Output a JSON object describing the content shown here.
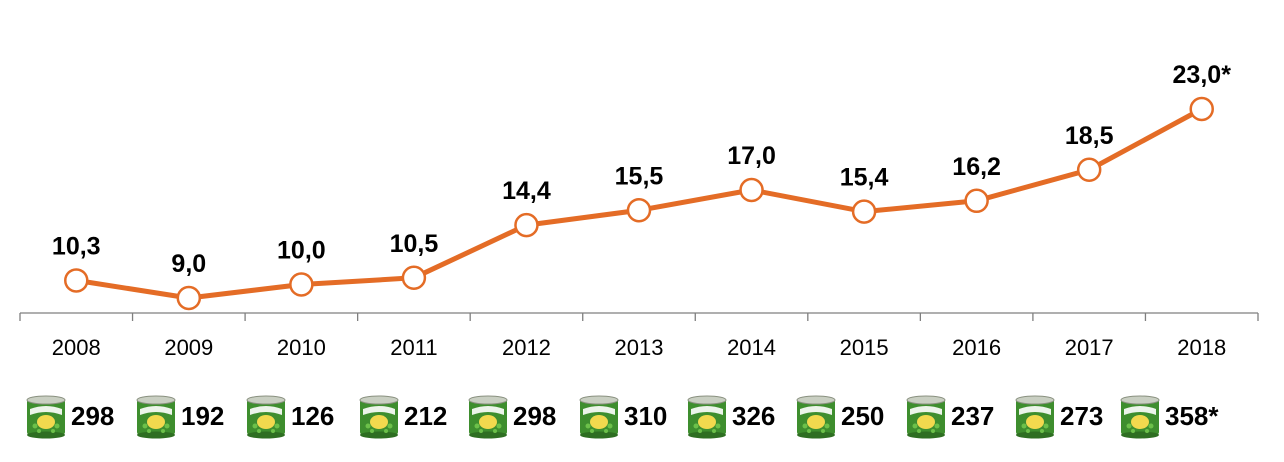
{
  "chart_data": {
    "type": "line",
    "categories": [
      "2008",
      "2009",
      "2010",
      "2011",
      "2012",
      "2013",
      "2014",
      "2015",
      "2016",
      "2017",
      "2018"
    ],
    "series": [
      {
        "values": [
          10.3,
          9.0,
          10.0,
          10.5,
          14.4,
          15.5,
          17.0,
          15.4,
          16.2,
          18.5,
          23.0
        ],
        "labels": [
          "10,3",
          "9,0",
          "10,0",
          "10,5",
          "14,4",
          "15,5",
          "17,0",
          "15,4",
          "16,2",
          "18,5",
          "23,0*"
        ],
        "color": "#E46C26"
      }
    ],
    "title": "",
    "xlabel": "",
    "ylabel": "",
    "ylim": [
      0,
      25
    ],
    "grid": false,
    "legend": "none"
  },
  "can_row": {
    "icon": "green-peas-can-icon",
    "items": [
      {
        "year": "2008",
        "value": "298"
      },
      {
        "year": "2009",
        "value": "192"
      },
      {
        "year": "2010",
        "value": "126"
      },
      {
        "year": "2011",
        "value": "212"
      },
      {
        "year": "2012",
        "value": "298"
      },
      {
        "year": "2013",
        "value": "310"
      },
      {
        "year": "2014",
        "value": "326"
      },
      {
        "year": "2015",
        "value": "250"
      },
      {
        "year": "2016",
        "value": "237"
      },
      {
        "year": "2017",
        "value": "273"
      },
      {
        "year": "2018",
        "value": "358*"
      }
    ]
  },
  "colors": {
    "line": "#E46C26",
    "marker_fill": "#FFFFFF",
    "axis": "#7F7F7F",
    "can_green": "#3E8E2E",
    "can_yellow": "#F2D94E"
  }
}
